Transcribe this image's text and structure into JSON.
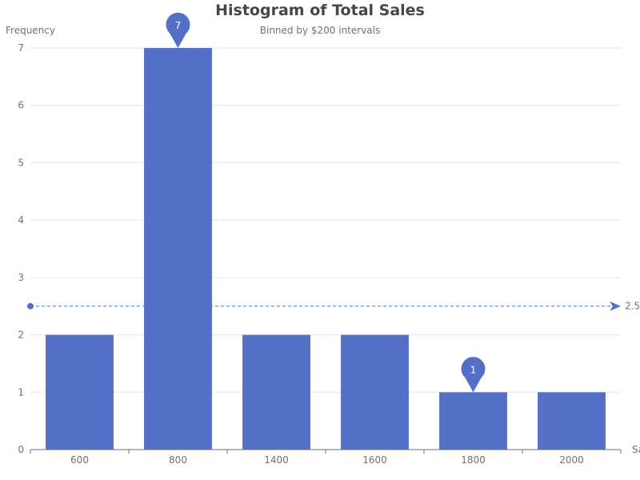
{
  "chart_data": {
    "type": "bar",
    "title": "Histogram of Total Sales",
    "subtitle": "Binned by $200 intervals",
    "ylabel": "Frequency",
    "xlabel": "Sa",
    "categories": [
      "600",
      "800",
      "1400",
      "1600",
      "1800",
      "2000"
    ],
    "values": [
      2,
      7,
      2,
      2,
      1,
      1
    ],
    "ylim": [
      0,
      7
    ],
    "yticks": [
      0,
      1,
      2,
      3,
      4,
      5,
      6,
      7
    ],
    "grid": true,
    "legend": "none",
    "bar_color": "#5470c6",
    "mark_points": [
      {
        "category": "800",
        "value": 7,
        "label": "7"
      },
      {
        "category": "1800",
        "value": 1,
        "label": "1"
      }
    ],
    "mark_line": {
      "value": 2.5,
      "label": "2.5"
    }
  }
}
